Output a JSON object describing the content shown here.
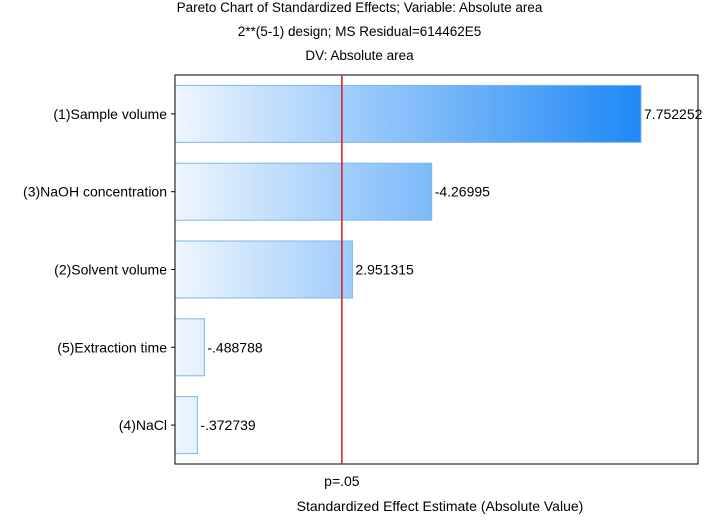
{
  "chart_data": {
    "type": "bar",
    "orientation": "horizontal",
    "title_lines": [
      "Pareto Chart of Standardized Effects; Variable: Absolute area",
      "2**(5-1) design; MS Residual=614462E5",
      "DV: Absolute area"
    ],
    "xlabel": "Standardized Effect Estimate (Absolute Value)",
    "categories": [
      "(1)Sample volume",
      "(3)NaOH concentration",
      "(2)Solvent volume",
      "(5)Extraction time",
      "(4)NaCl"
    ],
    "values": [
      7.752252,
      4.26995,
      2.951315,
      0.488788,
      0.372739
    ],
    "value_labels": [
      "7.752252",
      "-4.26995",
      "2.951315",
      "-.488788",
      "-.372739"
    ],
    "xlim": [
      0,
      8.7
    ],
    "reference_line": {
      "value": 2.776,
      "label": "p=.05",
      "color": "#d62728"
    },
    "bar_gradient": [
      "#eef6fe",
      "#1e88f5"
    ],
    "grid": false
  }
}
